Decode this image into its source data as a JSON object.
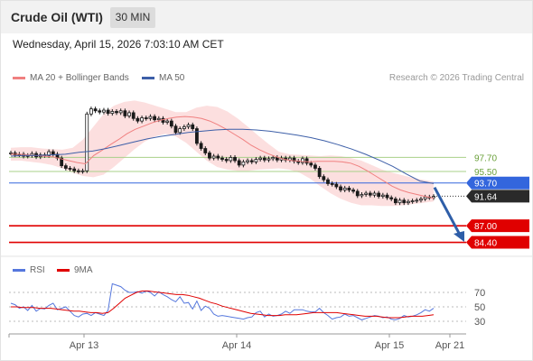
{
  "header": {
    "instrument": "Crude Oil (WTI)",
    "timeframe": "30 MIN"
  },
  "timestamp": "Wednesday, April 15, 2026 7:03:10 AM CET",
  "legend": {
    "ma20": "MA 20 + Bollinger Bands",
    "ma50": "MA 50",
    "rsi": "RSI",
    "rsi_ma": "9MA"
  },
  "credit": "Research © 2026 Trading Central",
  "colors": {
    "ma20": "#f08080",
    "ma50": "#3d5fa8",
    "band": "#fbd4d4",
    "candle": "#1a1a1a",
    "support": "#e00000",
    "pivot": "#3366dd",
    "resistance": "#a8d088",
    "arrow": "#2e5ea8",
    "rsi": "#5577dd",
    "rsi_ma": "#e00000"
  },
  "chart_data": [
    {
      "type": "candlestick",
      "ylim": [
        82.5,
        108.5
      ],
      "x_ticks": [
        "Apr 13",
        "Apr 14",
        "Apr 15",
        "Apr 21"
      ],
      "levels": [
        {
          "value": 97.7,
          "label": "97.70",
          "kind": "resistance"
        },
        {
          "value": 95.5,
          "label": "95.50",
          "kind": "resistance"
        },
        {
          "value": 93.7,
          "label": "93.70",
          "kind": "pivot"
        },
        {
          "value": 91.64,
          "label": "91.64",
          "kind": "last"
        },
        {
          "value": 87.0,
          "label": "87.00",
          "kind": "support"
        },
        {
          "value": 84.4,
          "label": "84.40",
          "kind": "support"
        }
      ],
      "close": [
        98.4,
        98.1,
        98.2,
        97.9,
        98.0,
        98.3,
        97.8,
        98.1,
        98.0,
        98.6,
        98.2,
        97.6,
        96.4,
        96.0,
        95.9,
        95.6,
        95.5,
        95.6,
        104.5,
        105.3,
        105.0,
        104.8,
        105.1,
        104.6,
        104.9,
        104.7,
        105.0,
        104.2,
        104.7,
        103.8,
        103.4,
        103.9,
        103.8,
        104.1,
        103.6,
        103.8,
        103.2,
        103.4,
        102.6,
        101.6,
        102.2,
        102.5,
        102.8,
        102.2,
        99.9,
        99.1,
        98.4,
        97.6,
        97.9,
        97.6,
        97.4,
        97.2,
        97.7,
        97.2,
        96.5,
        97.0,
        97.2,
        97.0,
        97.4,
        97.6,
        97.3,
        97.5,
        97.7,
        97.3,
        97.6,
        97.3,
        97.6,
        97.1,
        96.9,
        97.5,
        96.8,
        96.5,
        96.0,
        94.7,
        94.2,
        93.6,
        93.5,
        93.1,
        92.6,
        92.9,
        92.6,
        92.4,
        91.7,
        91.9,
        92.1,
        91.8,
        92.1,
        91.6,
        91.8,
        91.4,
        91.2,
        90.6,
        91.0,
        90.6,
        90.8,
        90.9,
        91.0,
        91.2,
        91.5,
        91.4,
        91.6
      ],
      "ma20": [
        98.2,
        98.2,
        98.1,
        98.0,
        97.9,
        97.8,
        97.5,
        97.2,
        96.9,
        96.7,
        98.0,
        98.8,
        99.7,
        100.5,
        101.4,
        102.1,
        102.6,
        103.1,
        103.5,
        103.8,
        104.0,
        104.1,
        104.0,
        103.8,
        103.4,
        102.8,
        102.1,
        101.3,
        100.5,
        99.6,
        98.9,
        98.3,
        97.8,
        97.4,
        97.2,
        97.1,
        97.0,
        97.1,
        97.1,
        97.1,
        97.0,
        96.8,
        96.3,
        95.6,
        94.8,
        94.0,
        93.2,
        92.6,
        92.2,
        91.9,
        91.6,
        91.3
      ],
      "ma50": [
        97.9,
        98.0,
        98.0,
        98.1,
        98.2,
        98.5,
        98.7,
        99.1,
        99.6,
        100.1,
        100.6,
        101.0,
        101.3,
        101.6,
        101.8,
        102.0,
        102.1,
        102.1,
        102.0,
        101.8,
        101.5,
        101.2,
        100.8,
        100.3,
        99.7,
        99.0,
        98.2,
        97.3,
        96.3,
        95.1,
        94.0,
        93.6
      ],
      "bb_upper": [
        99.2,
        99.3,
        99.3,
        99.1,
        99.0,
        98.9,
        99.2,
        100.5,
        102.5,
        104.5,
        105.8,
        106.4,
        106.6,
        106.3,
        105.8,
        105.3,
        104.8,
        104.8,
        105.5,
        105.8,
        105.6,
        104.9,
        103.8,
        102.5,
        101.1,
        99.8,
        98.6,
        98.2,
        98.1,
        98.0,
        97.9,
        98.0,
        97.9,
        97.6,
        97.2,
        96.5,
        95.8,
        95.3,
        94.9,
        94.5,
        94.2,
        93.9
      ],
      "bb_lower": [
        97.2,
        97.2,
        97.0,
        96.8,
        96.5,
        96.0,
        95.3,
        94.8,
        94.6,
        95.0,
        96.2,
        97.6,
        99.0,
        100.2,
        101.0,
        101.4,
        101.0,
        100.0,
        98.6,
        97.2,
        96.2,
        95.8,
        95.6,
        95.6,
        95.8,
        95.9,
        96.0,
        95.8,
        95.3,
        94.4,
        93.2,
        92.1,
        91.2,
        90.6,
        90.2,
        90.2,
        90.1,
        90.1,
        90.2,
        90.4,
        90.6,
        90.8
      ]
    },
    {
      "type": "line",
      "ylim": [
        15,
        85
      ],
      "y_ticks": [
        70,
        50,
        30
      ],
      "rsi": [
        55,
        53,
        48,
        50,
        45,
        52,
        44,
        48,
        47,
        52,
        55,
        46,
        48,
        50,
        44,
        38,
        36,
        40,
        41,
        38,
        42,
        40,
        38,
        45,
        82,
        80,
        78,
        73,
        70,
        70,
        71,
        69,
        72,
        70,
        65,
        71,
        67,
        64,
        60,
        57,
        64,
        55,
        56,
        47,
        58,
        45,
        51,
        48,
        40,
        37,
        38,
        37,
        36,
        35,
        34,
        33,
        35,
        36,
        42,
        44,
        36,
        40,
        37,
        38,
        40,
        44,
        41,
        46,
        46,
        46,
        44,
        43,
        43,
        48,
        42,
        38,
        33,
        35,
        36,
        40,
        37,
        38,
        35,
        32,
        34,
        36,
        38,
        37,
        35,
        36,
        33,
        32,
        34,
        38,
        36,
        37,
        39,
        42,
        46,
        44,
        48
      ],
      "rsi_ma": [
        50,
        50,
        49,
        49,
        49,
        48,
        48,
        48,
        47,
        46,
        45,
        44,
        44,
        43,
        42,
        42,
        41,
        42,
        48,
        55,
        62,
        66,
        70,
        72,
        72,
        71,
        70,
        69,
        68,
        67,
        67,
        66,
        64,
        62,
        59,
        56,
        54,
        51,
        49,
        47,
        45,
        43,
        41,
        40,
        39,
        38,
        38,
        38,
        39,
        39,
        39,
        40,
        41,
        42,
        42,
        42,
        42,
        42,
        41,
        40,
        39,
        38,
        37,
        37,
        37,
        36,
        35,
        35,
        35,
        36,
        37,
        37,
        37,
        38,
        39
      ]
    }
  ]
}
